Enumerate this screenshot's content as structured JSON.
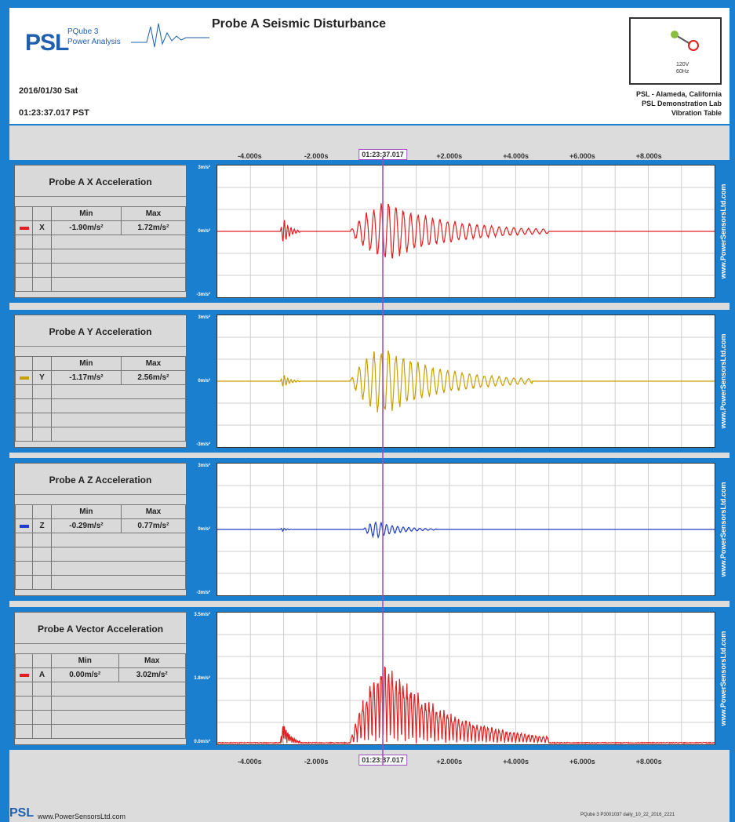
{
  "header": {
    "logo": "PSL",
    "product_line1": "PQube 3",
    "product_line2": "Power Analysis",
    "title": "Probe A Seismic Disturbance",
    "date": "2016/01/30 Sat",
    "time": "01:23:37.017 PST",
    "connection_voltage": "120V",
    "connection_freq": "60Hz",
    "location": [
      "PSL - Alameda, California",
      "PSL Demonstration Lab",
      "Vibration Table"
    ]
  },
  "timestamp_marker": "01:23:37.017",
  "chart_data": [
    {
      "type": "line",
      "title": "Probe A X Acceleration",
      "series": [
        {
          "name": "X",
          "color": "#e02020",
          "min": "-1.90m/s²",
          "max": "1.72m/s²"
        }
      ],
      "x_ticks": [
        "-4.000s",
        "-2.000s",
        "+2.000s",
        "+4.000s",
        "+6.000s",
        "+8.000s"
      ],
      "xlim": [
        -5,
        10
      ],
      "y_ticks": [
        "3m/s²",
        "0m/s²",
        "-3m/s²"
      ],
      "ylim": [
        -3,
        3
      ],
      "envelope": [
        {
          "t": -3.1,
          "amp": 0.8,
          "dur": 0.6,
          "freq": 10
        },
        {
          "t": -1.0,
          "amp": 1.9,
          "dur": 6.0,
          "freq": 4.5
        }
      ]
    },
    {
      "type": "line",
      "title": "Probe A Y Acceleration",
      "series": [
        {
          "name": "Y",
          "color": "#c8a000",
          "min": "-1.17m/s²",
          "max": "2.56m/s²"
        }
      ],
      "x_ticks": [
        "-4.000s",
        "-2.000s",
        "+2.000s",
        "+4.000s",
        "+6.000s",
        "+8.000s"
      ],
      "xlim": [
        -5,
        10
      ],
      "y_ticks": [
        "3m/s²",
        "0m/s²",
        "-3m/s²"
      ],
      "ylim": [
        -3,
        3
      ],
      "envelope": [
        {
          "t": -3.1,
          "amp": 0.4,
          "dur": 0.6,
          "freq": 10
        },
        {
          "t": -1.0,
          "amp": 2.2,
          "dur": 5.5,
          "freq": 4.5
        }
      ]
    },
    {
      "type": "line",
      "title": "Probe A Z Acceleration",
      "series": [
        {
          "name": "Z",
          "color": "#1f3fc8",
          "min": "-0.29m/s²",
          "max": "0.77m/s²"
        }
      ],
      "x_ticks": [
        "-4.000s",
        "-2.000s",
        "+2.000s",
        "+4.000s",
        "+6.000s",
        "+8.000s"
      ],
      "xlim": [
        -5,
        10
      ],
      "y_ticks": [
        "3m/s²",
        "0m/s²",
        "-3m/s²"
      ],
      "ylim": [
        -3,
        3
      ],
      "envelope": [
        {
          "t": -3.1,
          "amp": 0.12,
          "dur": 0.4,
          "freq": 10
        },
        {
          "t": -0.6,
          "amp": 0.55,
          "dur": 2.2,
          "freq": 6
        }
      ]
    },
    {
      "type": "area",
      "title": "Probe A Vector Acceleration",
      "series": [
        {
          "name": "A",
          "color": "#e02020",
          "min": "0.00m/s²",
          "max": "3.02m/s²"
        }
      ],
      "x_ticks": [
        "-4.000s",
        "-2.000s",
        "+2.000s",
        "+4.000s",
        "+6.000s",
        "+8.000s"
      ],
      "xlim": [
        -5,
        10
      ],
      "y_ticks": [
        "3.5m/s²",
        "1.8m/s²",
        "0.0m/s²"
      ],
      "ylim": [
        0,
        3.5
      ],
      "envelope": [
        {
          "t": -3.1,
          "amp": 0.8,
          "dur": 0.6,
          "freq": 10
        },
        {
          "t": -1.0,
          "amp": 3.0,
          "dur": 6.0,
          "freq": 4.5
        }
      ]
    }
  ],
  "table_headers": {
    "min": "Min",
    "max": "Max"
  },
  "watermark": "www.PowerSensorsLtd.com",
  "footer": {
    "logo": "PSL",
    "url": "www.PowerSensorsLtd.com",
    "file": "PQube 3   P3001037  daily_10_22_2016_2221"
  }
}
